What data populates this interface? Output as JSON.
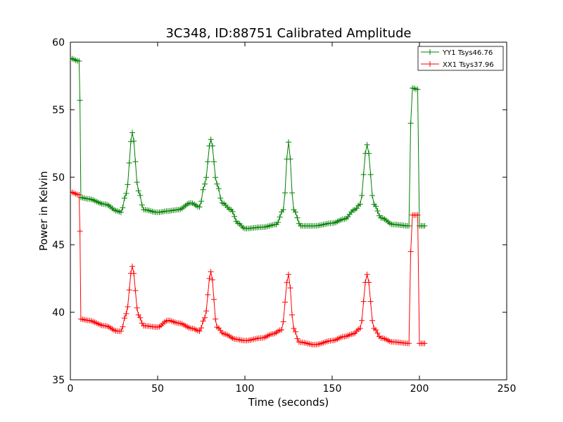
{
  "chart_data": {
    "type": "line",
    "title": "3C348, ID:88751 Calibrated Amplitude",
    "xlabel": "Time (seconds)",
    "ylabel": "Power in Kelvin",
    "xlim": [
      0,
      250
    ],
    "ylim": [
      35,
      60
    ],
    "xticks": [
      "0",
      "50",
      "100",
      "150",
      "200",
      "250"
    ],
    "yticks": [
      "35",
      "40",
      "45",
      "50",
      "55",
      "60"
    ],
    "grid": false,
    "legend_position": "top-right",
    "series": [
      {
        "name": "YY1 Tsys46.76",
        "color": "#008000",
        "marker": "plus",
        "keypoints": [
          [
            0,
            58.8
          ],
          [
            5,
            58.6
          ],
          [
            5.5,
            55.7
          ],
          [
            6,
            48.5
          ],
          [
            10,
            48.4
          ],
          [
            20,
            48.0
          ],
          [
            27,
            47.5
          ],
          [
            29,
            47.4
          ],
          [
            32,
            48.8
          ],
          [
            35.5,
            53.3
          ],
          [
            39,
            49.0
          ],
          [
            42,
            47.6
          ],
          [
            50,
            47.4
          ],
          [
            56,
            47.5
          ],
          [
            62,
            47.6
          ],
          [
            69,
            48.1
          ],
          [
            74,
            47.8
          ],
          [
            77,
            49.5
          ],
          [
            80.5,
            52.8
          ],
          [
            84,
            49.5
          ],
          [
            87,
            48.1
          ],
          [
            92,
            47.6
          ],
          [
            96,
            46.6
          ],
          [
            100,
            46.2
          ],
          [
            110,
            46.3
          ],
          [
            118,
            46.5
          ],
          [
            122,
            47.6
          ],
          [
            125,
            52.6
          ],
          [
            128,
            47.6
          ],
          [
            132,
            46.4
          ],
          [
            140,
            46.4
          ],
          [
            150,
            46.6
          ],
          [
            157,
            46.9
          ],
          [
            163,
            47.6
          ],
          [
            166,
            48.0
          ],
          [
            170,
            52.4
          ],
          [
            174,
            48.0
          ],
          [
            178,
            47.0
          ],
          [
            185,
            46.5
          ],
          [
            194,
            46.4
          ],
          [
            195,
            54.0
          ],
          [
            196,
            56.6
          ],
          [
            199,
            56.5
          ],
          [
            200,
            46.4
          ],
          [
            203,
            46.4
          ]
        ]
      },
      {
        "name": "XX1 Tsys37.96",
        "color": "#ff0000",
        "marker": "plus",
        "keypoints": [
          [
            0,
            48.9
          ],
          [
            5,
            48.7
          ],
          [
            5.5,
            46.0
          ],
          [
            6,
            39.5
          ],
          [
            10,
            39.4
          ],
          [
            20,
            39.0
          ],
          [
            27,
            38.6
          ],
          [
            29,
            38.6
          ],
          [
            32,
            39.9
          ],
          [
            35.5,
            43.4
          ],
          [
            39,
            39.8
          ],
          [
            42,
            39.0
          ],
          [
            50,
            38.9
          ],
          [
            56,
            39.4
          ],
          [
            62,
            39.2
          ],
          [
            70,
            38.8
          ],
          [
            74,
            38.6
          ],
          [
            77,
            39.6
          ],
          [
            80.5,
            43.0
          ],
          [
            84,
            38.9
          ],
          [
            88,
            38.4
          ],
          [
            95,
            38.0
          ],
          [
            100,
            37.9
          ],
          [
            110,
            38.1
          ],
          [
            116,
            38.4
          ],
          [
            121,
            38.7
          ],
          [
            125,
            42.8
          ],
          [
            128,
            38.8
          ],
          [
            131,
            37.8
          ],
          [
            140,
            37.6
          ],
          [
            150,
            37.9
          ],
          [
            157,
            38.2
          ],
          [
            162,
            38.4
          ],
          [
            166,
            38.8
          ],
          [
            170,
            42.8
          ],
          [
            174,
            38.8
          ],
          [
            178,
            38.1
          ],
          [
            185,
            37.8
          ],
          [
            194,
            37.7
          ],
          [
            195,
            44.5
          ],
          [
            196,
            47.2
          ],
          [
            199,
            47.2
          ],
          [
            200,
            37.7
          ],
          [
            203,
            37.7
          ]
        ]
      }
    ]
  }
}
